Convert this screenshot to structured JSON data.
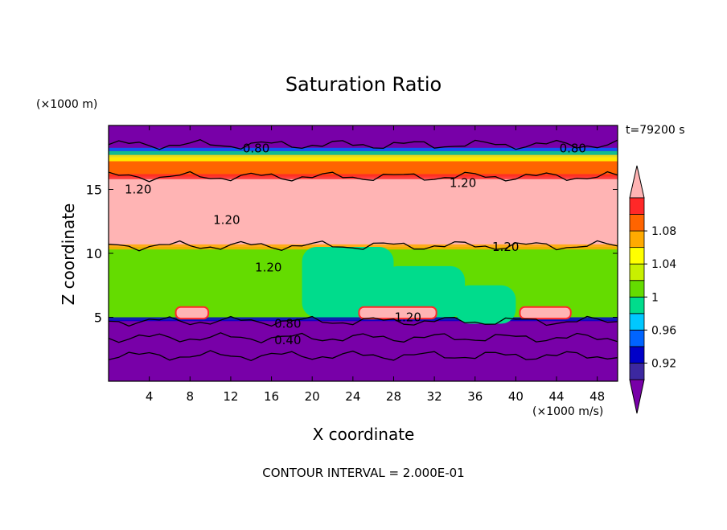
{
  "chart_data": {
    "type": "heatmap",
    "title": "Saturation Ratio",
    "xlabel": "X coordinate",
    "ylabel": "Z coordinate",
    "x_unit": "(×1000 m/s)",
    "y_unit": "(×1000 m)",
    "time_label": "t=79200 s",
    "footer": "CONTOUR INTERVAL = 2.000E-01",
    "xlim": [
      0,
      50
    ],
    "ylim": [
      0,
      20
    ],
    "x_ticks": [
      4,
      8,
      12,
      16,
      20,
      24,
      28,
      32,
      36,
      40,
      44,
      48
    ],
    "y_ticks": [
      5,
      10,
      15
    ],
    "colorbar": {
      "levels": [
        0.92,
        0.94,
        0.96,
        0.98,
        1.0,
        1.02,
        1.04,
        1.06,
        1.08,
        1.1
      ],
      "labels": [
        "0.92",
        "0.96",
        "1",
        "1.04",
        "1.08"
      ],
      "colors": [
        "#7800a8",
        "#3c28a0",
        "#0000c8",
        "#0064ff",
        "#00c8ff",
        "#00dc8c",
        "#64dc00",
        "#c8f000",
        "#ffff00",
        "#ffaa00",
        "#ff6400",
        "#ff2828",
        "#ffb4b4"
      ]
    },
    "bands": [
      {
        "z": [
          0,
          4.8
        ],
        "value": 0.9,
        "color": "#7800a8"
      },
      {
        "z": [
          4.8,
          10.5
        ],
        "value": 1.0,
        "color": "#64dc00"
      },
      {
        "z": [
          10.5,
          16.0
        ],
        "value": 1.1,
        "color": "#ffb4b4"
      },
      {
        "z": [
          16.0,
          17.5
        ],
        "value": 1.06,
        "color": "#ff6400"
      },
      {
        "z": [
          17.5,
          20
        ],
        "value": 0.9,
        "color": "#7800a8"
      }
    ],
    "contour_labels": [
      {
        "text": "0.80",
        "x": 14.5,
        "z": 18.2
      },
      {
        "text": "0.80",
        "x": 45.6,
        "z": 18.2
      },
      {
        "text": "1.20",
        "x": 2.9,
        "z": 15.0
      },
      {
        "text": "1.20",
        "x": 34.8,
        "z": 15.5
      },
      {
        "text": "1.20",
        "x": 11.6,
        "z": 12.6
      },
      {
        "text": "1.20",
        "x": 39.0,
        "z": 10.5
      },
      {
        "text": "1.20",
        "x": 15.7,
        "z": 8.9
      },
      {
        "text": "1.20",
        "x": 29.4,
        "z": 5.0
      },
      {
        "text": "0.80",
        "x": 17.6,
        "z": 4.5
      },
      {
        "text": "0.40",
        "x": 17.6,
        "z": 3.2
      }
    ]
  }
}
